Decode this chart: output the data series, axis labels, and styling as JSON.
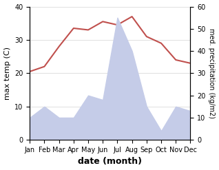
{
  "months": [
    "Jan",
    "Feb",
    "Mar",
    "Apr",
    "May",
    "Jun",
    "Jul",
    "Aug",
    "Sep",
    "Oct",
    "Nov",
    "Dec"
  ],
  "temperature": [
    20.5,
    22,
    28,
    33.5,
    33,
    35.5,
    34.5,
    37,
    31,
    29,
    24,
    23
  ],
  "precipitation": [
    10,
    15,
    10,
    10,
    20,
    18,
    55,
    40,
    15,
    4,
    15,
    13
  ],
  "temp_color": "#c0504d",
  "precip_fill_color": "#c5cce8",
  "xlabel": "date (month)",
  "ylabel_left": "max temp (C)",
  "ylabel_right": "med. precipitation (kg/m2)",
  "ylim_left": [
    0,
    40
  ],
  "ylim_right": [
    0,
    60
  ],
  "yticks_left": [
    0,
    10,
    20,
    30,
    40
  ],
  "yticks_right": [
    0,
    10,
    20,
    30,
    40,
    50,
    60
  ],
  "background_color": "#ffffff"
}
